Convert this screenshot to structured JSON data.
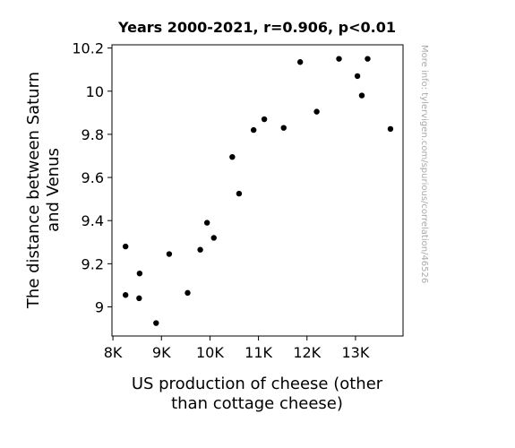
{
  "chart_data": {
    "type": "scatter",
    "title": "Years 2000-2021, r=0.906, p<0.01",
    "xlabel_lines": [
      "US production of cheese (other",
      "than cottage cheese)"
    ],
    "ylabel_lines": [
      "The distance between Saturn",
      "and Venus"
    ],
    "watermark": "More info: tylervigen.com/spurious/correlation/46526",
    "xlim": [
      7980,
      13980
    ],
    "ylim": [
      8.865,
      10.215
    ],
    "x_ticks": [
      8000,
      9000,
      10000,
      11000,
      12000,
      13000
    ],
    "x_tick_labels": [
      "8K",
      "9K",
      "10K",
      "11K",
      "12K",
      "13K"
    ],
    "y_ticks": [
      9.0,
      9.2,
      9.4,
      9.6,
      9.8,
      10.0,
      10.2
    ],
    "y_tick_labels": [
      "9",
      "9.2",
      "9.4",
      "9.6",
      "9.8",
      "10",
      "10.2"
    ],
    "grid": false,
    "marker_color": "#000000",
    "points": [
      {
        "x": 8260,
        "y": 9.28
      },
      {
        "x": 8260,
        "y": 9.055
      },
      {
        "x": 8550,
        "y": 9.155
      },
      {
        "x": 8540,
        "y": 9.04
      },
      {
        "x": 8890,
        "y": 8.925
      },
      {
        "x": 9160,
        "y": 9.245
      },
      {
        "x": 9540,
        "y": 9.065
      },
      {
        "x": 9800,
        "y": 9.265
      },
      {
        "x": 9940,
        "y": 9.39
      },
      {
        "x": 10080,
        "y": 9.32
      },
      {
        "x": 10460,
        "y": 9.695
      },
      {
        "x": 10600,
        "y": 9.525
      },
      {
        "x": 10900,
        "y": 9.82
      },
      {
        "x": 11120,
        "y": 9.87
      },
      {
        "x": 11520,
        "y": 9.83
      },
      {
        "x": 11860,
        "y": 10.135
      },
      {
        "x": 12200,
        "y": 9.905
      },
      {
        "x": 12660,
        "y": 10.15
      },
      {
        "x": 13040,
        "y": 10.07
      },
      {
        "x": 13130,
        "y": 9.98
      },
      {
        "x": 13250,
        "y": 10.15
      },
      {
        "x": 13720,
        "y": 9.825
      }
    ]
  }
}
